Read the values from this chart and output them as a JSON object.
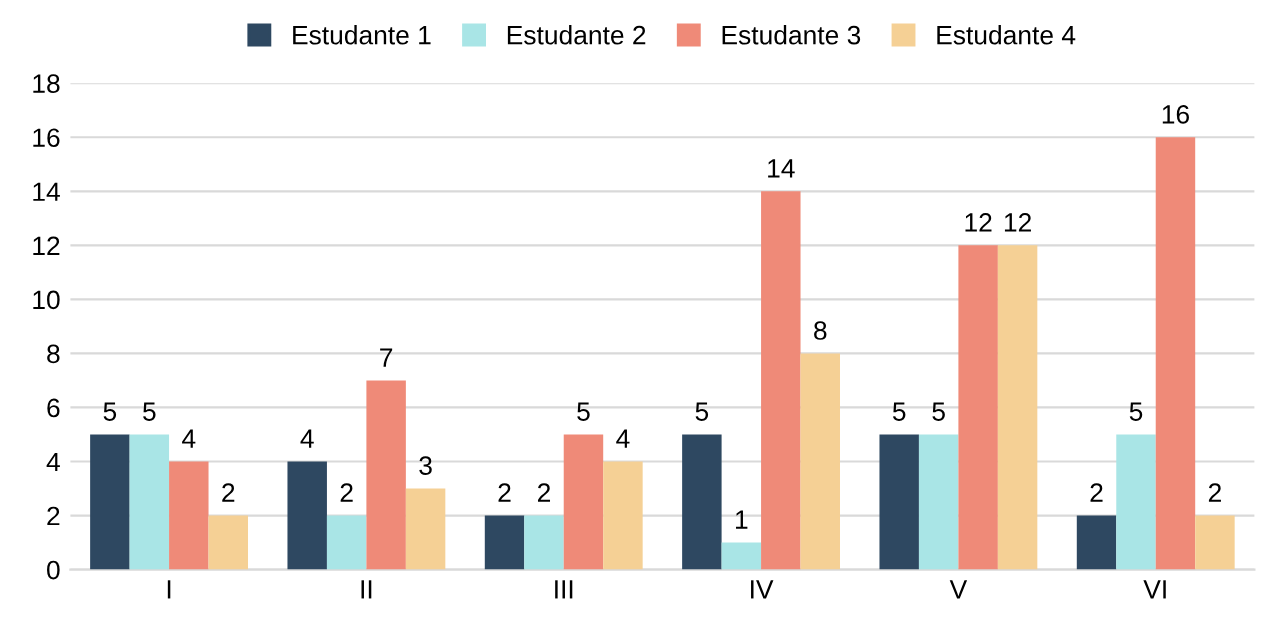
{
  "chart_data": {
    "type": "bar",
    "categories": [
      "I",
      "II",
      "III",
      "IV",
      "V",
      "VI"
    ],
    "series": [
      {
        "name": "Estudante 1",
        "color": "#2e4861",
        "values": [
          5,
          4,
          2,
          5,
          5,
          2
        ]
      },
      {
        "name": "Estudante 2",
        "color": "#a9e5e6",
        "values": [
          5,
          2,
          2,
          1,
          5,
          5
        ]
      },
      {
        "name": "Estudante 3",
        "color": "#ef8a78",
        "values": [
          4,
          7,
          5,
          14,
          12,
          16
        ]
      },
      {
        "name": "Estudante 4",
        "color": "#f5d095",
        "values": [
          2,
          3,
          4,
          8,
          12,
          2
        ]
      }
    ],
    "ylim": [
      0,
      18
    ],
    "yticks": [
      0,
      2,
      4,
      6,
      8,
      10,
      12,
      14,
      16,
      18
    ],
    "grid": "y",
    "legend": "top",
    "data_labels": true
  }
}
